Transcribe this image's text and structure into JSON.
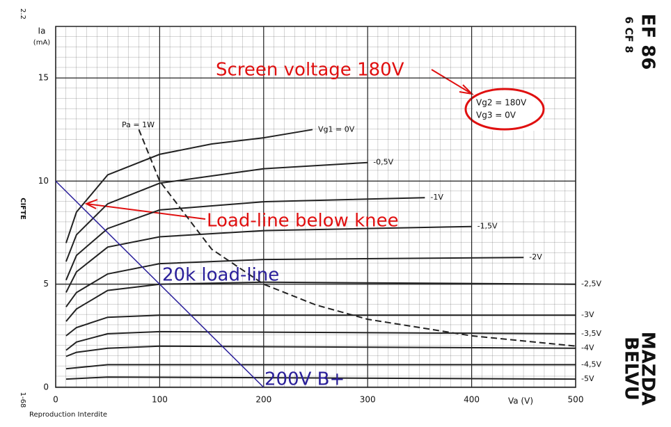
{
  "chart_data": {
    "type": "line",
    "title": "EF 86",
    "subtitle": "6 CF 8",
    "brand": [
      "MAZDA",
      "BELVU"
    ],
    "y_label": "Ia",
    "y_unit": "(mA)",
    "x_label": "Va  (V)",
    "side_label": "CIFTE",
    "corner_top": "2.2",
    "corner_bottom": "1-68",
    "footer": "Reproduction Interdite",
    "conditions": [
      "Vg2  =  180V",
      "Vg3  =      0V"
    ],
    "xlim": [
      0,
      500
    ],
    "ylim": [
      0,
      17.5
    ],
    "xticks": [
      0,
      100,
      200,
      300,
      400,
      500
    ],
    "yticks": [
      0,
      5,
      10,
      15
    ],
    "grid": true,
    "series": [
      {
        "name": "Vg1 = 0V",
        "color": "#222",
        "x": [
          10,
          20,
          50,
          100,
          150,
          200,
          247
        ],
        "values": [
          7.0,
          8.5,
          10.3,
          11.3,
          11.8,
          12.1,
          12.5
        ]
      },
      {
        "name": "-0,5V",
        "color": "#222",
        "x": [
          10,
          20,
          50,
          100,
          200,
          300
        ],
        "values": [
          6.1,
          7.4,
          8.9,
          9.9,
          10.6,
          10.9
        ]
      },
      {
        "name": "-1V",
        "color": "#222",
        "x": [
          10,
          20,
          50,
          100,
          200,
          355
        ],
        "values": [
          5.2,
          6.4,
          7.7,
          8.6,
          9.0,
          9.2
        ]
      },
      {
        "name": "-1,5V",
        "color": "#222",
        "x": [
          10,
          20,
          50,
          100,
          200,
          400
        ],
        "values": [
          4.6,
          5.6,
          6.8,
          7.3,
          7.6,
          7.8
        ]
      },
      {
        "name": "-2V",
        "color": "#222",
        "x": [
          10,
          20,
          50,
          100,
          200,
          450
        ],
        "values": [
          3.9,
          4.6,
          5.5,
          6.0,
          6.2,
          6.3
        ]
      },
      {
        "name": "-2,5V",
        "color": "#222",
        "x": [
          10,
          20,
          50,
          100,
          200,
          500
        ],
        "values": [
          3.2,
          3.8,
          4.7,
          5.0,
          5.1,
          5.0
        ]
      },
      {
        "name": "-3V",
        "color": "#222",
        "x": [
          10,
          20,
          50,
          100,
          500
        ],
        "values": [
          2.5,
          2.9,
          3.4,
          3.5,
          3.5
        ]
      },
      {
        "name": "-3,5V",
        "color": "#222",
        "x": [
          10,
          20,
          50,
          100,
          500
        ],
        "values": [
          1.8,
          2.2,
          2.6,
          2.7,
          2.6
        ]
      },
      {
        "name": "-4V",
        "color": "#222",
        "x": [
          10,
          20,
          50,
          100,
          500
        ],
        "values": [
          1.5,
          1.7,
          1.9,
          2.0,
          1.9
        ]
      },
      {
        "name": "-4,5V",
        "color": "#222",
        "x": [
          10,
          50,
          500
        ],
        "values": [
          0.9,
          1.1,
          1.1
        ]
      },
      {
        "name": "-5V",
        "color": "#222",
        "x": [
          10,
          50,
          500
        ],
        "values": [
          0.4,
          0.5,
          0.4
        ]
      },
      {
        "name": "Pa = 1W",
        "color": "#222",
        "x": [
          80,
          100,
          150,
          200,
          250,
          300,
          400,
          500
        ],
        "values": [
          12.5,
          10,
          6.7,
          5,
          4,
          3.3,
          2.5,
          2
        ]
      },
      {
        "name": "20k load-line",
        "color": "#2a1f9a",
        "x": [
          0,
          200
        ],
        "values": [
          10,
          0
        ]
      }
    ],
    "annotations": [
      "Screen voltage 180V",
      "Load-line below knee",
      "200V B+"
    ]
  }
}
